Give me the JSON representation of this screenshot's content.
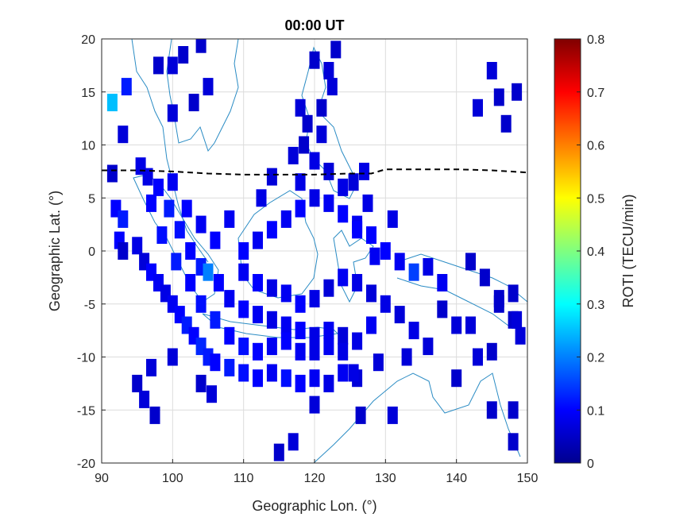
{
  "chart_data": {
    "type": "heatmap",
    "title": "00:00 UT",
    "xlabel": "Geographic Lon. (°)",
    "ylabel": "Geographic Lat. (°)",
    "xlim": [
      90,
      150
    ],
    "ylim": [
      -20,
      20
    ],
    "xticks": [
      "90",
      "100",
      "110",
      "120",
      "130",
      "140",
      "150"
    ],
    "yticks": [
      "20",
      "15",
      "10",
      "5",
      "0",
      "-5",
      "-10",
      "-15",
      "-20"
    ],
    "grid": true,
    "colorbar": {
      "label": "ROTI (TECU/min)",
      "range": [
        0,
        0.8
      ],
      "ticks": [
        "0.8",
        "0.7",
        "0.6",
        "0.5",
        "0.4",
        "0.3",
        "0.2",
        "0.1",
        "0"
      ],
      "colormap": "jet"
    },
    "magnetic_equator": [
      [
        90,
        7.6
      ],
      [
        95,
        7.6
      ],
      [
        100,
        7.5
      ],
      [
        105,
        7.3
      ],
      [
        110,
        7.2
      ],
      [
        115,
        7.2
      ],
      [
        120,
        7.2
      ],
      [
        125,
        7.3
      ],
      [
        128,
        7.3
      ],
      [
        130,
        7.7
      ],
      [
        135,
        7.7
      ],
      [
        140,
        7.7
      ],
      [
        145,
        7.6
      ],
      [
        150,
        7.4
      ]
    ],
    "cells": [
      [
        91.5,
        14,
        0.25
      ],
      [
        93.5,
        15.5,
        0.12
      ],
      [
        93,
        11,
        0.07
      ],
      [
        95.5,
        8,
        0.08
      ],
      [
        96.5,
        7,
        0.08
      ],
      [
        91.5,
        7.3,
        0.06
      ],
      [
        92,
        4,
        0.1
      ],
      [
        93,
        3,
        0.12
      ],
      [
        92.5,
        1,
        0.1
      ],
      [
        93,
        0,
        0.06
      ],
      [
        95,
        0.5,
        0.08
      ],
      [
        96,
        -1,
        0.07
      ],
      [
        97,
        -2,
        0.1
      ],
      [
        98,
        -3,
        0.09
      ],
      [
        99,
        -4,
        0.08
      ],
      [
        100,
        -5,
        0.09
      ],
      [
        101,
        -6,
        0.1
      ],
      [
        102,
        -7,
        0.12
      ],
      [
        103,
        -8,
        0.1
      ],
      [
        104,
        -9,
        0.13
      ],
      [
        105,
        -10,
        0.12
      ],
      [
        106,
        -10.5,
        0.1
      ],
      [
        108,
        -11,
        0.12
      ],
      [
        110,
        -11.5,
        0.11
      ],
      [
        112,
        -12,
        0.1
      ],
      [
        114,
        -11.5,
        0.09
      ],
      [
        116,
        -12,
        0.11
      ],
      [
        118,
        -12.5,
        0.1
      ],
      [
        120,
        -12,
        0.09
      ],
      [
        122,
        -12.5,
        0.08
      ],
      [
        124,
        -11.5,
        0.09
      ],
      [
        126,
        -12,
        0.07
      ],
      [
        98,
        6,
        0.1
      ],
      [
        99.5,
        4,
        0.12
      ],
      [
        101,
        2,
        0.11
      ],
      [
        102.5,
        0,
        0.1
      ],
      [
        104,
        -1.5,
        0.12
      ],
      [
        105,
        -2,
        0.2
      ],
      [
        106.5,
        -3,
        0.1
      ],
      [
        108,
        -4.5,
        0.09
      ],
      [
        110,
        -5.5,
        0.1
      ],
      [
        112,
        -6,
        0.09
      ],
      [
        114,
        -6.5,
        0.08
      ],
      [
        116,
        -7,
        0.09
      ],
      [
        118,
        -7.5,
        0.1
      ],
      [
        120,
        -8,
        0.08
      ],
      [
        122,
        -7.5,
        0.09
      ],
      [
        124,
        -8,
        0.07
      ],
      [
        126,
        -8.5,
        0.08
      ],
      [
        128,
        -7,
        0.09
      ],
      [
        110,
        0,
        0.1
      ],
      [
        112,
        1,
        0.09
      ],
      [
        114,
        2,
        0.1
      ],
      [
        116,
        3,
        0.09
      ],
      [
        118,
        4,
        0.1
      ],
      [
        120,
        5,
        0.08
      ],
      [
        122,
        4.5,
        0.09
      ],
      [
        124,
        3.5,
        0.1
      ],
      [
        126,
        2.5,
        0.09
      ],
      [
        128,
        1.5,
        0.1
      ],
      [
        110,
        -2,
        0.09
      ],
      [
        112,
        -3,
        0.1
      ],
      [
        114,
        -3.5,
        0.08
      ],
      [
        116,
        -4,
        0.09
      ],
      [
        118,
        -5,
        0.1
      ],
      [
        120,
        -4.5,
        0.08
      ],
      [
        122,
        -3.5,
        0.07
      ],
      [
        124,
        -2.5,
        0.09
      ],
      [
        126,
        -3,
        0.08
      ],
      [
        128,
        -4,
        0.07
      ],
      [
        130,
        0,
        0.1
      ],
      [
        132,
        -1,
        0.09
      ],
      [
        134,
        -2,
        0.15
      ],
      [
        136,
        -1.5,
        0.08
      ],
      [
        138,
        -3,
        0.09
      ],
      [
        130,
        -5,
        0.08
      ],
      [
        132,
        -6,
        0.07
      ],
      [
        134,
        -7.5,
        0.08
      ],
      [
        136,
        -9,
        0.07
      ],
      [
        138,
        -5.5,
        0.06
      ],
      [
        140,
        -7,
        0.07
      ],
      [
        142,
        -1,
        0.06
      ],
      [
        144,
        -2.5,
        0.06
      ],
      [
        146,
        -4.5,
        0.06
      ],
      [
        148,
        -6.5,
        0.06
      ],
      [
        126,
        2,
        0.1
      ],
      [
        127.5,
        4.5,
        0.08
      ],
      [
        128.5,
        -0.5,
        0.09
      ],
      [
        131,
        3,
        0.08
      ],
      [
        133,
        -10,
        0.07
      ],
      [
        97,
        -11,
        0.07
      ],
      [
        95,
        -12.5,
        0.06
      ],
      [
        96,
        -14,
        0.07
      ],
      [
        97.5,
        -15.5,
        0.06
      ],
      [
        100,
        -10,
        0.07
      ],
      [
        104,
        -12.5,
        0.06
      ],
      [
        105.5,
        -13.5,
        0.07
      ],
      [
        115,
        -19,
        0.06
      ],
      [
        117,
        -18,
        0.07
      ],
      [
        129,
        -10.5,
        0.07
      ],
      [
        125.5,
        -11.5,
        0.08
      ],
      [
        120,
        -14.5,
        0.07
      ],
      [
        126.5,
        -15.5,
        0.06
      ],
      [
        131,
        -15.5,
        0.07
      ],
      [
        140,
        -12,
        0.06
      ],
      [
        143,
        -10,
        0.07
      ],
      [
        142,
        -7,
        0.07
      ],
      [
        145,
        -15,
        0.06
      ],
      [
        148,
        -15,
        0.06
      ],
      [
        148,
        -18,
        0.06
      ],
      [
        148.5,
        -6.5,
        0.07
      ],
      [
        146,
        -5,
        0.06
      ],
      [
        148,
        -4,
        0.06
      ],
      [
        149,
        -8,
        0.07
      ],
      [
        145,
        -9.5,
        0.06
      ],
      [
        145,
        17,
        0.07
      ],
      [
        146,
        14.5,
        0.06
      ],
      [
        143,
        13.5,
        0.07
      ],
      [
        147,
        12,
        0.06
      ],
      [
        148.5,
        15,
        0.06
      ],
      [
        98,
        17.5,
        0.06
      ],
      [
        100,
        17.5,
        0.07
      ],
      [
        101.5,
        18.5,
        0.06
      ],
      [
        100,
        13,
        0.07
      ],
      [
        103,
        14,
        0.06
      ],
      [
        105,
        15.5,
        0.07
      ],
      [
        104,
        19.5,
        0.06
      ],
      [
        120,
        18,
        0.06
      ],
      [
        122,
        17,
        0.07
      ],
      [
        123,
        19,
        0.06
      ],
      [
        122.5,
        15.5,
        0.07
      ],
      [
        121,
        13.5,
        0.06
      ],
      [
        118,
        13.5,
        0.07
      ],
      [
        119,
        12,
        0.06
      ],
      [
        121,
        11,
        0.07
      ],
      [
        117,
        9,
        0.07
      ],
      [
        118.5,
        10,
        0.06
      ],
      [
        120,
        8.5,
        0.08
      ],
      [
        122,
        7.5,
        0.07
      ],
      [
        124,
        6,
        0.08
      ],
      [
        125.5,
        6.5,
        0.07
      ],
      [
        127,
        7.5,
        0.08
      ],
      [
        118,
        6.5,
        0.08
      ],
      [
        114,
        7,
        0.07
      ],
      [
        112.5,
        5,
        0.08
      ],
      [
        108,
        3,
        0.09
      ],
      [
        106,
        1,
        0.1
      ],
      [
        104,
        2.5,
        0.09
      ],
      [
        102,
        4,
        0.1
      ],
      [
        100,
        6.5,
        0.09
      ],
      [
        97,
        4.5,
        0.1
      ],
      [
        98.5,
        1.5,
        0.11
      ],
      [
        100.5,
        -1,
        0.12
      ],
      [
        102.5,
        -3,
        0.1
      ],
      [
        104,
        -5,
        0.11
      ],
      [
        106,
        -6.5,
        0.12
      ],
      [
        108,
        -8,
        0.1
      ],
      [
        110,
        -9,
        0.11
      ],
      [
        112,
        -9.5,
        0.1
      ],
      [
        114,
        -9,
        0.09
      ],
      [
        116,
        -8.5,
        0.1
      ],
      [
        118,
        -9.5,
        0.09
      ],
      [
        120,
        -9.5,
        0.08
      ],
      [
        122,
        -9,
        0.09
      ],
      [
        124,
        -9.5,
        0.08
      ]
    ]
  }
}
